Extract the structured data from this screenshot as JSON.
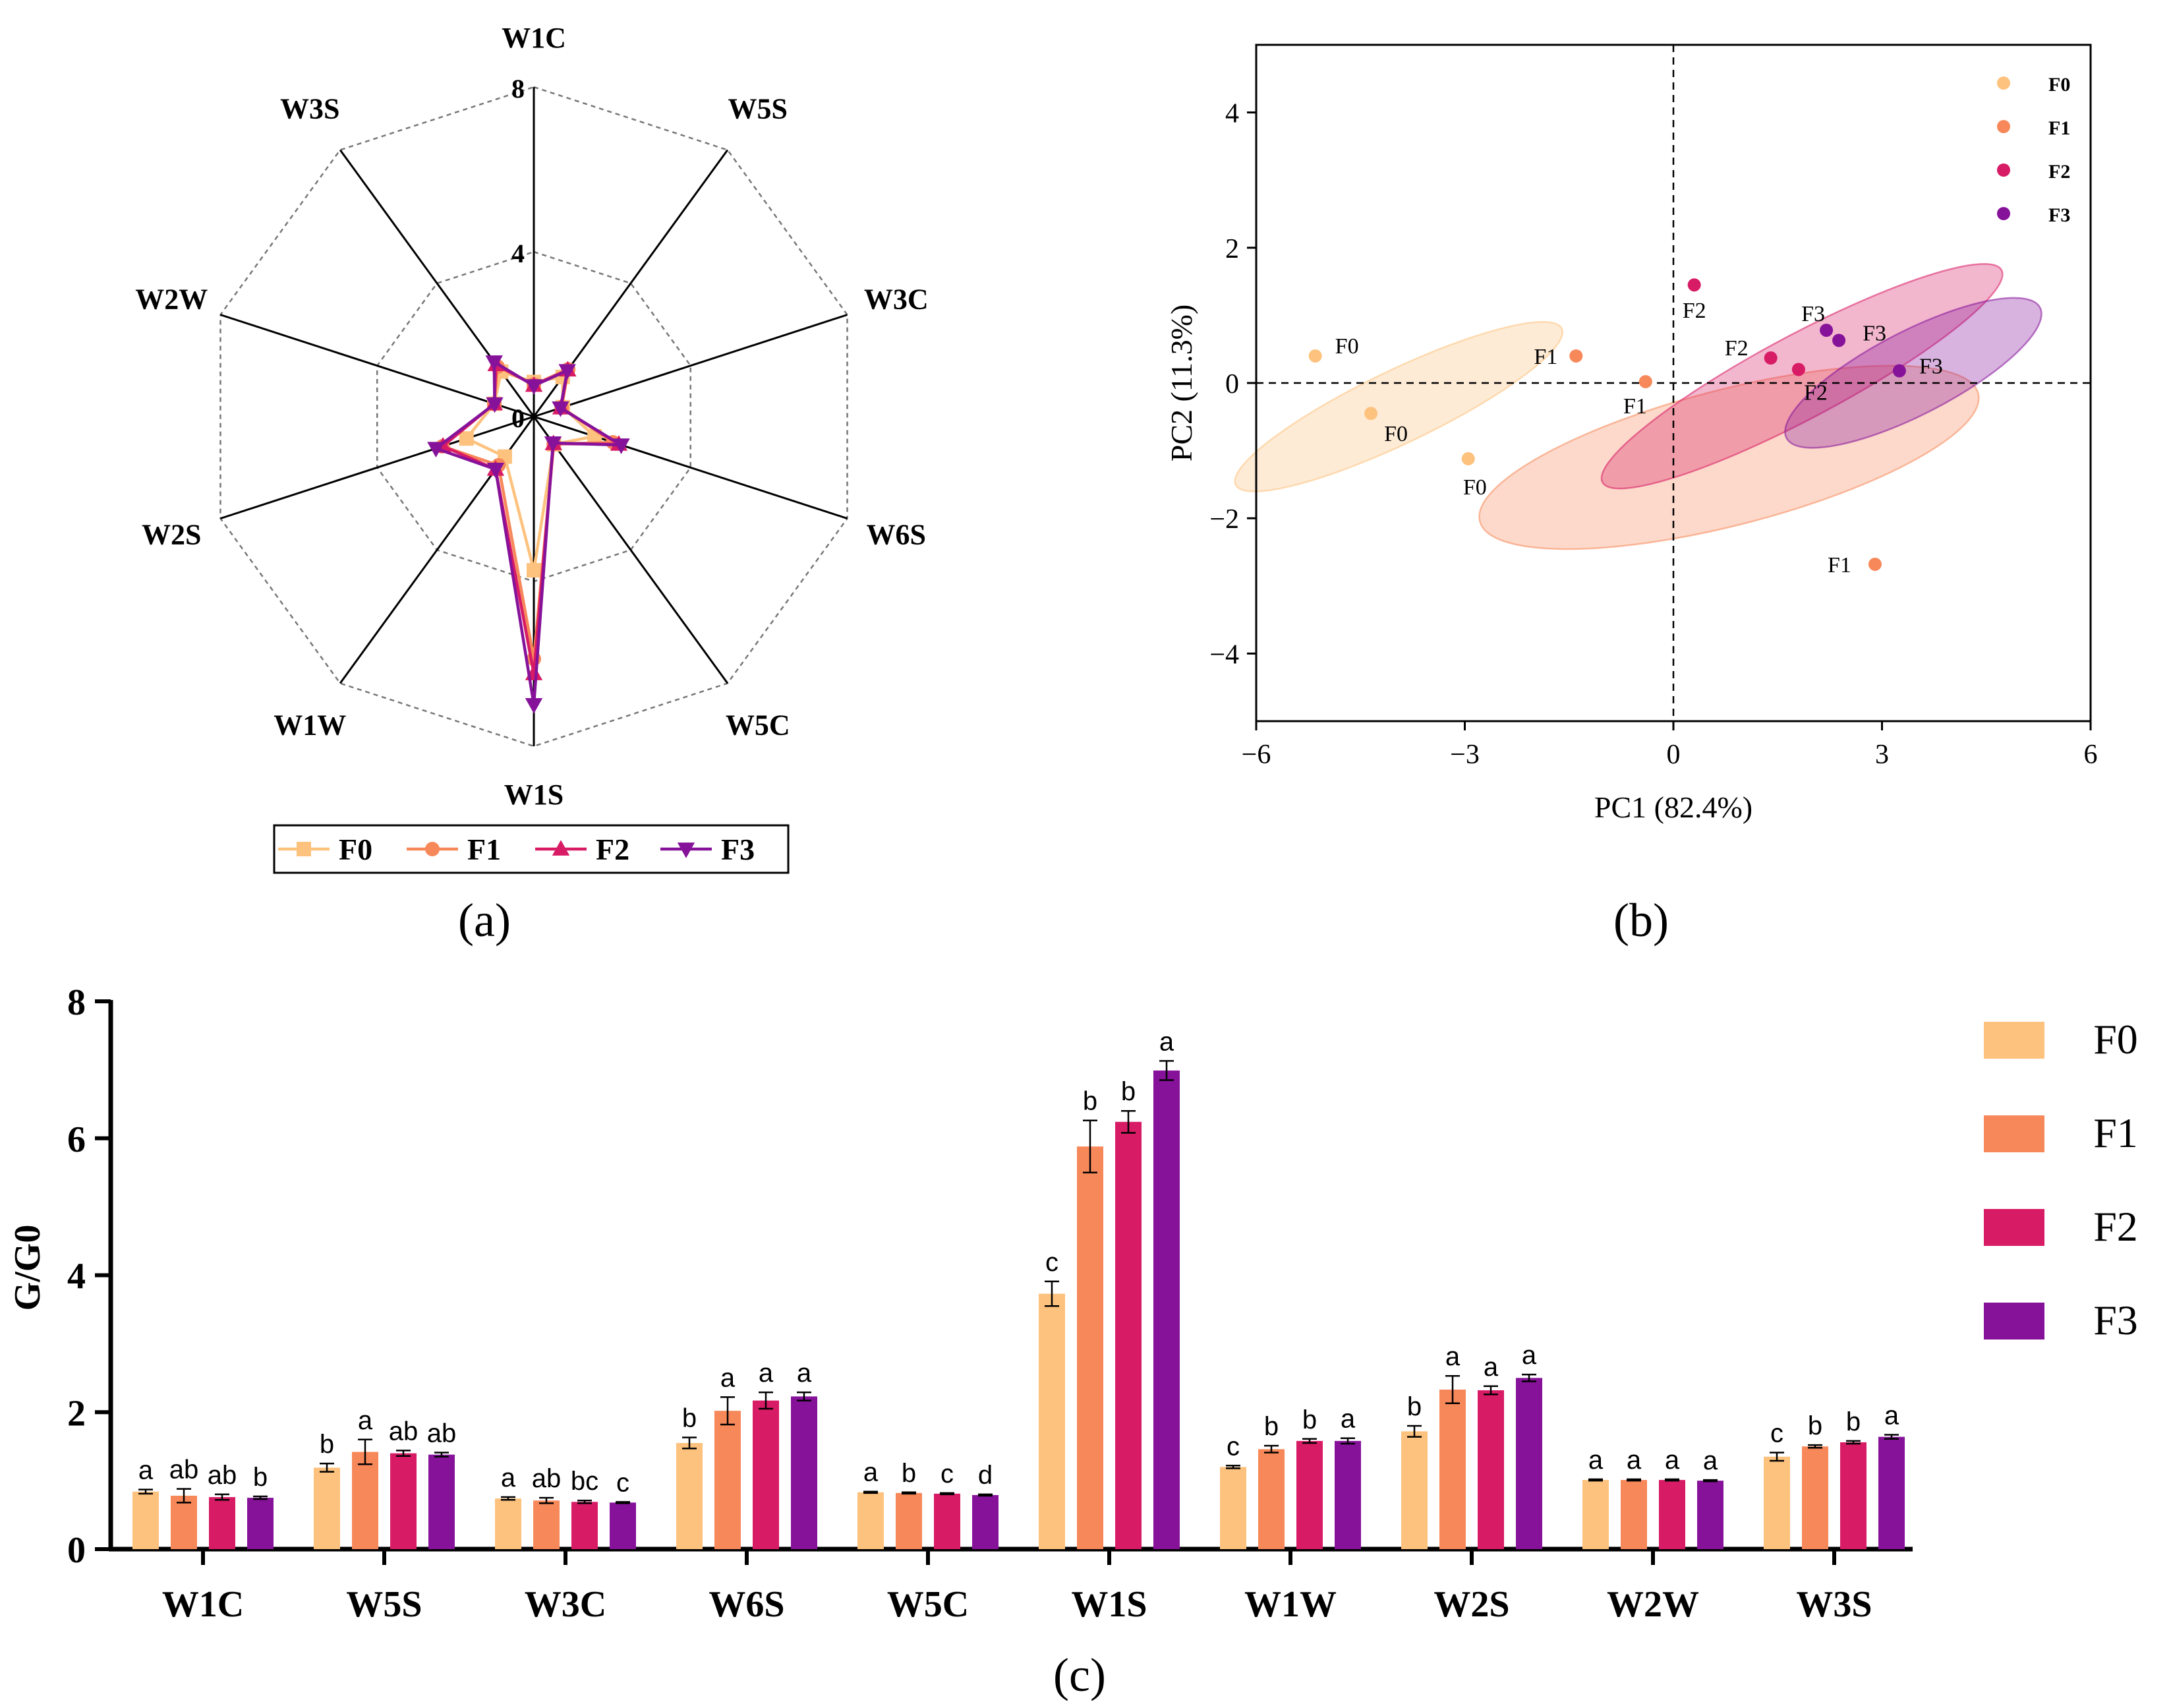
{
  "colors": {
    "F0": "#FDC27E",
    "F1": "#F7885A",
    "F2": "#D81B65",
    "F3": "#86129A",
    "axis": "#000000",
    "grid": "#888888"
  },
  "chart_data": [
    {
      "panel": "(a)",
      "type": "radar",
      "axes": [
        "W1C",
        "W5S",
        "W3C",
        "W6S",
        "W5C",
        "W1S",
        "W1W",
        "W2S",
        "W2W",
        "W3S"
      ],
      "rings": [
        0,
        4,
        8
      ],
      "rmax": 8,
      "series": [
        {
          "name": "F0",
          "values": [
            0.84,
            1.19,
            0.74,
            1.55,
            0.83,
            3.73,
            1.2,
            1.72,
            1.01,
            1.35
          ]
        },
        {
          "name": "F1",
          "values": [
            0.78,
            1.42,
            0.71,
            2.02,
            0.82,
            5.88,
            1.46,
            2.33,
            1.01,
            1.5
          ]
        },
        {
          "name": "F2",
          "values": [
            0.76,
            1.4,
            0.69,
            2.17,
            0.81,
            6.24,
            1.58,
            2.32,
            1.01,
            1.56
          ]
        },
        {
          "name": "F3",
          "values": [
            0.75,
            1.38,
            0.68,
            2.23,
            0.79,
            6.99,
            1.58,
            2.5,
            1.0,
            1.64
          ]
        }
      ],
      "legend": [
        "F0",
        "F1",
        "F2",
        "F3"
      ],
      "label": "(a)"
    },
    {
      "panel": "(b)",
      "type": "scatter",
      "xlabel": "PC1 (82.4%)",
      "ylabel": "PC2 (11.3%)",
      "xlim": [
        -6,
        6
      ],
      "ylim": [
        -5,
        5
      ],
      "xticks": [
        -6,
        -3,
        0,
        3,
        6
      ],
      "yticks": [
        -4,
        -2,
        0,
        2,
        4
      ],
      "series": [
        {
          "name": "F0",
          "points": [
            [
              -5.15,
              0.4
            ],
            [
              -4.35,
              -0.45
            ],
            [
              -2.95,
              -1.12
            ]
          ]
        },
        {
          "name": "F1",
          "points": [
            [
              -1.4,
              0.4
            ],
            [
              -0.4,
              0.02
            ],
            [
              2.9,
              -2.68
            ]
          ]
        },
        {
          "name": "F2",
          "points": [
            [
              0.3,
              1.45
            ],
            [
              1.4,
              0.37
            ],
            [
              1.8,
              0.2
            ]
          ]
        },
        {
          "name": "F3",
          "points": [
            [
              2.2,
              0.78
            ],
            [
              2.38,
              0.63
            ],
            [
              3.25,
              0.18
            ]
          ]
        }
      ],
      "ellipses": [
        {
          "name": "F0",
          "cx": -3.95,
          "cy": -0.35,
          "rx": 5.2,
          "ry": 1.05,
          "angle": -32
        },
        {
          "name": "F1",
          "cx": 0.8,
          "cy": -1.1,
          "rx": 7.4,
          "ry": 1.95,
          "angle": -18
        },
        {
          "name": "F2",
          "cx": 1.85,
          "cy": 0.1,
          "rx": 6.5,
          "ry": 1.2,
          "angle": -35
        },
        {
          "name": "F3",
          "cx": 3.45,
          "cy": 0.15,
          "rx": 4.1,
          "ry": 1.2,
          "angle": -34
        }
      ],
      "legend": [
        "F0",
        "F1",
        "F2",
        "F3"
      ],
      "label": "(b)"
    },
    {
      "panel": "(c)",
      "type": "bar",
      "categories": [
        "W1C",
        "W5S",
        "W3C",
        "W6S",
        "W5C",
        "W1S",
        "W1W",
        "W2S",
        "W2W",
        "W3S"
      ],
      "ylabel": "G/G0",
      "ylim": [
        0,
        8
      ],
      "yticks": [
        0,
        2,
        4,
        6,
        8
      ],
      "series": [
        {
          "name": "F0",
          "values": [
            0.84,
            1.19,
            0.74,
            1.55,
            0.83,
            3.73,
            1.2,
            1.72,
            1.01,
            1.35
          ],
          "errors": [
            0.03,
            0.06,
            0.02,
            0.08,
            0.01,
            0.18,
            0.02,
            0.08,
            0.01,
            0.06
          ],
          "letters": [
            "a",
            "b",
            "a",
            "b",
            "a",
            "c",
            "c",
            "b",
            "a",
            "c"
          ]
        },
        {
          "name": "F1",
          "values": [
            0.78,
            1.42,
            0.71,
            2.02,
            0.82,
            5.88,
            1.46,
            2.33,
            1.01,
            1.5
          ],
          "errors": [
            0.1,
            0.18,
            0.04,
            0.2,
            0.01,
            0.38,
            0.05,
            0.2,
            0.01,
            0.02
          ],
          "letters": [
            "ab",
            "a",
            "ab",
            "a",
            "b",
            "b",
            "b",
            "a",
            "a",
            "b"
          ]
        },
        {
          "name": "F2",
          "values": [
            0.76,
            1.4,
            0.69,
            2.17,
            0.81,
            6.24,
            1.58,
            2.32,
            1.01,
            1.56
          ],
          "errors": [
            0.04,
            0.04,
            0.02,
            0.12,
            0.01,
            0.16,
            0.03,
            0.06,
            0.01,
            0.02
          ],
          "letters": [
            "ab",
            "ab",
            "bc",
            "a",
            "c",
            "b",
            "b",
            "a",
            "a",
            "b"
          ]
        },
        {
          "name": "F3",
          "values": [
            0.75,
            1.38,
            0.68,
            2.23,
            0.79,
            6.99,
            1.58,
            2.5,
            1.0,
            1.64
          ],
          "errors": [
            0.02,
            0.03,
            0.01,
            0.06,
            0.01,
            0.14,
            0.04,
            0.05,
            0.01,
            0.03
          ],
          "letters": [
            "b",
            "ab",
            "c",
            "a",
            "d",
            "a",
            "a",
            "a",
            "a",
            "a"
          ]
        }
      ],
      "legend": [
        "F0",
        "F1",
        "F2",
        "F3"
      ],
      "label": "(c)"
    }
  ]
}
